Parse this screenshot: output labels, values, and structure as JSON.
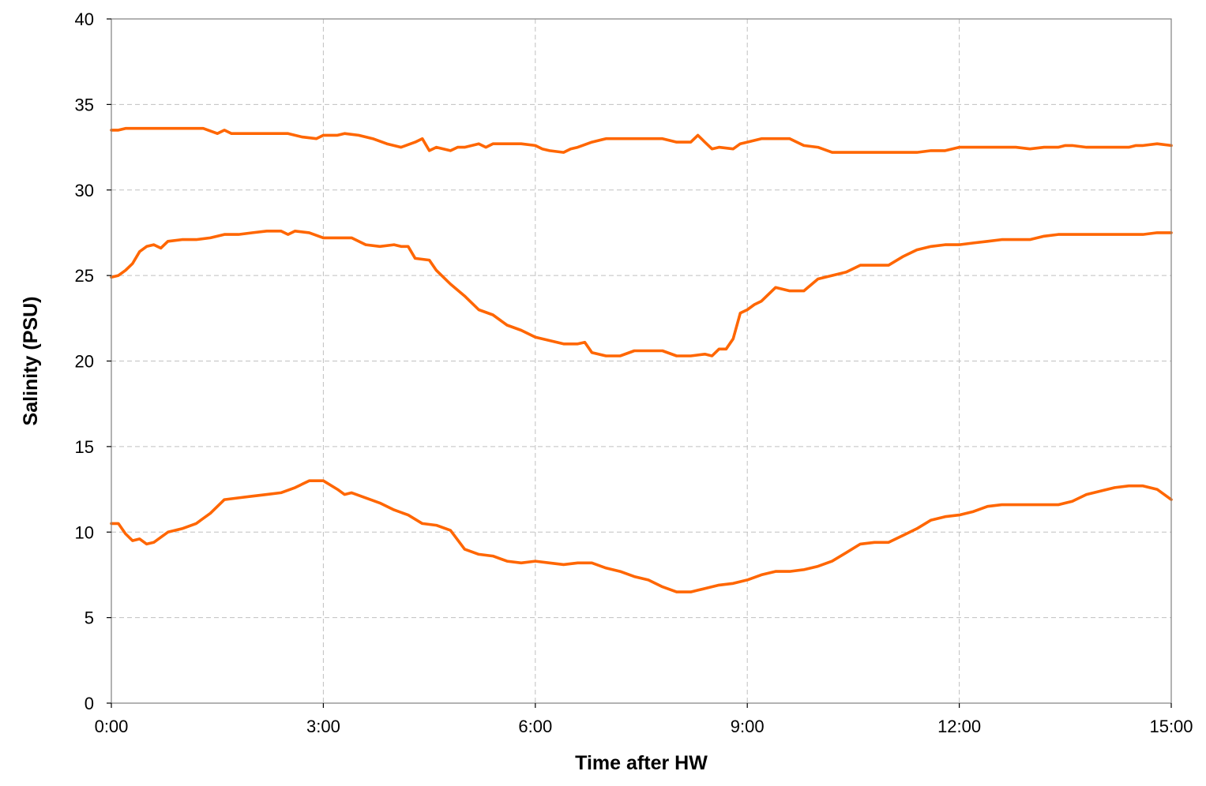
{
  "chart_data": {
    "type": "line",
    "title": "",
    "xlabel": "Time after HW",
    "ylabel": "Salinity (PSU)",
    "xlim": [
      0,
      15
    ],
    "ylim": [
      0,
      40
    ],
    "xticks": [
      0,
      3,
      6,
      9,
      12,
      15
    ],
    "xtick_labels": [
      "0:00",
      "3:00",
      "6:00",
      "9:00",
      "12:00",
      "15:00"
    ],
    "yticks": [
      0,
      5,
      10,
      15,
      20,
      25,
      30,
      35,
      40
    ],
    "ytick_labels": [
      "0",
      "5",
      "10",
      "15",
      "20",
      "25",
      "30",
      "35",
      "40"
    ],
    "grid": true,
    "legend": "none",
    "line_color": "#FF6600",
    "series": [
      {
        "x": [
          0,
          0.1,
          0.2,
          0.4,
          0.6,
          0.8,
          1.0,
          1.2,
          1.3,
          1.5,
          1.6,
          1.7,
          1.9,
          2.1,
          2.3,
          2.5,
          2.7,
          2.9,
          3.0,
          3.2,
          3.3,
          3.5,
          3.7,
          3.9,
          4.1,
          4.3,
          4.4,
          4.5,
          4.6,
          4.8,
          4.9,
          5.0,
          5.2,
          5.3,
          5.4,
          5.6,
          5.8,
          6.0,
          6.1,
          6.2,
          6.4,
          6.5,
          6.6,
          6.8,
          7.0,
          7.2,
          7.4,
          7.6,
          7.8,
          8.0,
          8.2,
          8.3,
          8.4,
          8.5,
          8.6,
          8.8,
          8.9,
          9.0,
          9.2,
          9.4,
          9.6,
          9.8,
          10.0,
          10.2,
          10.4,
          10.6,
          10.8,
          11.0,
          11.2,
          11.4,
          11.6,
          11.8,
          12.0,
          12.2,
          12.4,
          12.6,
          12.8,
          13.0,
          13.2,
          13.4,
          13.5,
          13.6,
          13.8,
          14.0,
          14.2,
          14.4,
          14.5,
          14.6,
          14.8,
          15.0
        ],
        "y": [
          33.5,
          33.5,
          33.6,
          33.6,
          33.6,
          33.6,
          33.6,
          33.6,
          33.6,
          33.3,
          33.5,
          33.3,
          33.3,
          33.3,
          33.3,
          33.3,
          33.1,
          33.0,
          33.2,
          33.2,
          33.3,
          33.2,
          33.0,
          32.7,
          32.5,
          32.8,
          33.0,
          32.3,
          32.5,
          32.3,
          32.5,
          32.5,
          32.7,
          32.5,
          32.7,
          32.7,
          32.7,
          32.6,
          32.4,
          32.3,
          32.2,
          32.4,
          32.5,
          32.8,
          33.0,
          33.0,
          33.0,
          33.0,
          33.0,
          32.8,
          32.8,
          33.2,
          32.8,
          32.4,
          32.5,
          32.4,
          32.7,
          32.8,
          33.0,
          33.0,
          33.0,
          32.6,
          32.5,
          32.2,
          32.2,
          32.2,
          32.2,
          32.2,
          32.2,
          32.2,
          32.3,
          32.3,
          32.5,
          32.5,
          32.5,
          32.5,
          32.5,
          32.4,
          32.5,
          32.5,
          32.6,
          32.6,
          32.5,
          32.5,
          32.5,
          32.5,
          32.6,
          32.6,
          32.7,
          32.6
        ]
      },
      {
        "x": [
          0,
          0.1,
          0.2,
          0.3,
          0.4,
          0.5,
          0.6,
          0.7,
          0.8,
          1.0,
          1.2,
          1.4,
          1.6,
          1.8,
          2.0,
          2.2,
          2.4,
          2.5,
          2.6,
          2.8,
          3.0,
          3.2,
          3.3,
          3.4,
          3.6,
          3.8,
          4.0,
          4.1,
          4.2,
          4.3,
          4.5,
          4.6,
          4.8,
          5.0,
          5.2,
          5.4,
          5.6,
          5.8,
          6.0,
          6.2,
          6.4,
          6.6,
          6.7,
          6.8,
          7.0,
          7.2,
          7.4,
          7.6,
          7.8,
          8.0,
          8.2,
          8.4,
          8.5,
          8.6,
          8.7,
          8.8,
          8.9,
          9.0,
          9.1,
          9.2,
          9.4,
          9.6,
          9.8,
          10.0,
          10.2,
          10.4,
          10.6,
          10.8,
          11.0,
          11.2,
          11.4,
          11.6,
          11.8,
          12.0,
          12.2,
          12.4,
          12.6,
          12.8,
          13.0,
          13.2,
          13.4,
          13.6,
          13.8,
          14.0,
          14.2,
          14.4,
          14.6,
          14.8,
          15.0
        ],
        "y": [
          24.9,
          25.0,
          25.3,
          25.7,
          26.4,
          26.7,
          26.8,
          26.6,
          27.0,
          27.1,
          27.1,
          27.2,
          27.4,
          27.4,
          27.5,
          27.6,
          27.6,
          27.4,
          27.6,
          27.5,
          27.2,
          27.2,
          27.2,
          27.2,
          26.8,
          26.7,
          26.8,
          26.7,
          26.7,
          26.0,
          25.9,
          25.3,
          24.5,
          23.8,
          23.0,
          22.7,
          22.1,
          21.8,
          21.4,
          21.2,
          21.0,
          21.0,
          21.1,
          20.5,
          20.3,
          20.3,
          20.6,
          20.6,
          20.6,
          20.3,
          20.3,
          20.4,
          20.3,
          20.7,
          20.7,
          21.3,
          22.8,
          23.0,
          23.3,
          23.5,
          24.3,
          24.1,
          24.1,
          24.8,
          25.0,
          25.2,
          25.6,
          25.6,
          25.6,
          26.1,
          26.5,
          26.7,
          26.8,
          26.8,
          26.9,
          27.0,
          27.1,
          27.1,
          27.1,
          27.3,
          27.4,
          27.4,
          27.4,
          27.4,
          27.4,
          27.4,
          27.4,
          27.5,
          27.5
        ]
      },
      {
        "x": [
          0,
          0.1,
          0.2,
          0.3,
          0.4,
          0.5,
          0.6,
          0.8,
          1.0,
          1.2,
          1.4,
          1.6,
          1.8,
          2.0,
          2.2,
          2.4,
          2.6,
          2.8,
          3.0,
          3.2,
          3.3,
          3.4,
          3.6,
          3.8,
          4.0,
          4.2,
          4.4,
          4.6,
          4.8,
          5.0,
          5.2,
          5.4,
          5.6,
          5.8,
          6.0,
          6.2,
          6.4,
          6.6,
          6.8,
          7.0,
          7.2,
          7.4,
          7.6,
          7.8,
          8.0,
          8.2,
          8.3,
          8.4,
          8.6,
          8.8,
          9.0,
          9.2,
          9.4,
          9.6,
          9.8,
          10.0,
          10.2,
          10.4,
          10.6,
          10.8,
          11.0,
          11.2,
          11.4,
          11.6,
          11.8,
          12.0,
          12.2,
          12.4,
          12.6,
          12.8,
          13.0,
          13.2,
          13.4,
          13.6,
          13.8,
          14.0,
          14.2,
          14.4,
          14.6,
          14.8,
          15.0
        ],
        "y": [
          10.5,
          10.5,
          9.9,
          9.5,
          9.6,
          9.3,
          9.4,
          10.0,
          10.2,
          10.5,
          11.1,
          11.9,
          12.0,
          12.1,
          12.2,
          12.3,
          12.6,
          13.0,
          13.0,
          12.5,
          12.2,
          12.3,
          12.0,
          11.7,
          11.3,
          11.0,
          10.5,
          10.4,
          10.1,
          9.0,
          8.7,
          8.6,
          8.3,
          8.2,
          8.3,
          8.2,
          8.1,
          8.2,
          8.2,
          7.9,
          7.7,
          7.4,
          7.2,
          6.8,
          6.5,
          6.5,
          6.6,
          6.7,
          6.9,
          7.0,
          7.2,
          7.5,
          7.7,
          7.7,
          7.8,
          8.0,
          8.3,
          8.8,
          9.3,
          9.4,
          9.4,
          9.8,
          10.2,
          10.7,
          10.9,
          11.0,
          11.2,
          11.5,
          11.6,
          11.6,
          11.6,
          11.6,
          11.6,
          11.8,
          12.2,
          12.4,
          12.6,
          12.7,
          12.7,
          12.5,
          11.9
        ]
      }
    ]
  }
}
